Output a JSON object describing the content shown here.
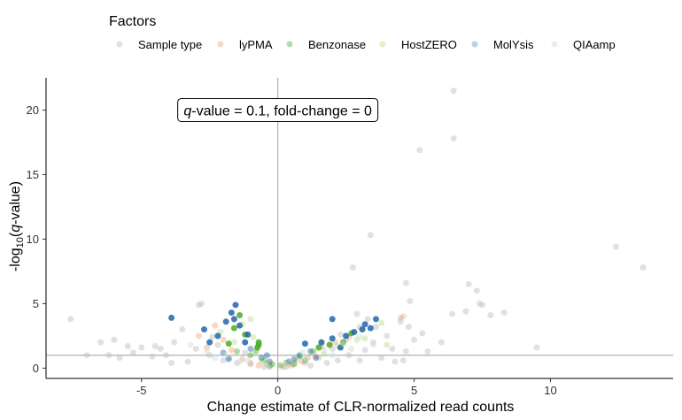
{
  "chart_data": {
    "type": "scatter",
    "legend": {
      "title": "Factors",
      "position": "top",
      "items": [
        {
          "name": "Sample type",
          "color": "#bdbdbd"
        },
        {
          "name": "lyPMA",
          "color": "#f4a582"
        },
        {
          "name": "Benzonase",
          "color": "#5aae61"
        },
        {
          "name": "HostZERO",
          "color": "#b8e186"
        },
        {
          "name": "MolYsis",
          "color": "#6a99c8"
        },
        {
          "name": "QIAamp",
          "color": "#c7e0d8"
        }
      ]
    },
    "xlabel": "Change estimate of CLR-normalized read counts",
    "ylabel_parts": {
      "pre": "-log",
      "sub": "10",
      "open": "(",
      "italic": "q",
      "post": "-value)"
    },
    "xlim": [
      -8.5,
      14.5
    ],
    "ylim": [
      -0.8,
      22.5
    ],
    "xticks": [
      -5,
      0,
      5,
      10
    ],
    "yticks": [
      0,
      5,
      10,
      15,
      20
    ],
    "grid": false,
    "reference_lines": {
      "vertical_x": 0,
      "horizontal_y": 1
    },
    "annotation": {
      "italic": "q",
      "text": "-value = 0.1, fold-change = 0",
      "x": 0,
      "y": 20
    },
    "series": [
      {
        "name": "Sample type",
        "color": "#bdbdbd",
        "points": [
          [
            6.45,
            21.5
          ],
          [
            6.45,
            17.8
          ],
          [
            5.2,
            16.9
          ],
          [
            12.4,
            9.4
          ],
          [
            13.4,
            7.8
          ],
          [
            3.4,
            10.3
          ],
          [
            2.75,
            7.8
          ],
          [
            4.7,
            6.6
          ],
          [
            7.0,
            6.5
          ],
          [
            7.3,
            6.0
          ],
          [
            4.85,
            5.2
          ],
          [
            6.9,
            4.4
          ],
          [
            7.5,
            4.9
          ],
          [
            6.4,
            4.2
          ],
          [
            7.8,
            4.1
          ],
          [
            8.3,
            4.3
          ],
          [
            7.4,
            5.0
          ],
          [
            6.0,
            2.0
          ],
          [
            9.5,
            1.6
          ],
          [
            -7.6,
            3.8
          ],
          [
            -6.5,
            2.0
          ],
          [
            -6.0,
            2.2
          ],
          [
            -5.5,
            1.7
          ],
          [
            -5.0,
            1.6
          ],
          [
            -4.5,
            1.7
          ],
          [
            -4.3,
            1.5
          ],
          [
            -3.5,
            3.0
          ],
          [
            -3.8,
            2.0
          ],
          [
            -4.1,
            1.0
          ],
          [
            -4.6,
            0.9
          ],
          [
            -5.3,
            1.2
          ],
          [
            -3.0,
            1.5
          ],
          [
            -2.8,
            5.0
          ],
          [
            -2.9,
            4.9
          ],
          [
            -2.5,
            1.0
          ],
          [
            -2.0,
            0.6
          ],
          [
            -1.5,
            0.4
          ],
          [
            -1.0,
            0.3
          ],
          [
            -0.5,
            0.1
          ],
          [
            0.5,
            0.2
          ],
          [
            1.0,
            0.4
          ],
          [
            1.5,
            0.8
          ],
          [
            2.0,
            1.5
          ],
          [
            2.5,
            2.2
          ],
          [
            3.0,
            3.2
          ],
          [
            3.3,
            3.8
          ],
          [
            2.9,
            4.2
          ],
          [
            3.6,
            3.2
          ],
          [
            4.0,
            2.5
          ],
          [
            4.2,
            1.5
          ],
          [
            4.5,
            3.6
          ],
          [
            4.6,
            4.0
          ],
          [
            4.7,
            1.3
          ],
          [
            4.8,
            3.2
          ],
          [
            4.6,
            0.6
          ],
          [
            5.0,
            2.2
          ],
          [
            5.3,
            2.7
          ],
          [
            5.5,
            1.3
          ],
          [
            3.8,
            0.8
          ],
          [
            4.3,
            0.5
          ],
          [
            2.2,
            0.6
          ],
          [
            1.8,
            0.4
          ],
          [
            2.6,
            1.0
          ],
          [
            3.2,
            1.4
          ],
          [
            -3.3,
            0.5
          ],
          [
            -2.2,
            1.8
          ],
          [
            -3.9,
            0.4
          ],
          [
            -1.8,
            0.8
          ],
          [
            -1.2,
            1.2
          ],
          [
            -2.4,
            2.4
          ],
          [
            1.2,
            0.2
          ],
          [
            0.3,
            0.1
          ],
          [
            -0.3,
            0.1
          ],
          [
            1.6,
            1.9
          ],
          [
            2.3,
            2.6
          ],
          [
            3.5,
            2.0
          ],
          [
            3.0,
            0.6
          ],
          [
            -6.2,
            1.0
          ],
          [
            -7.0,
            1.0
          ],
          [
            -5.8,
            0.8
          ]
        ]
      },
      {
        "name": "lyPMA",
        "color": "#f4a582",
        "points": [
          [
            4.5,
            3.9
          ],
          [
            -2.3,
            3.3
          ],
          [
            -2.9,
            2.5
          ],
          [
            -2.0,
            2.2
          ],
          [
            -1.7,
            1.4
          ],
          [
            -1.0,
            0.4
          ],
          [
            -0.4,
            0.3
          ],
          [
            0.2,
            0.1
          ],
          [
            0.6,
            0.4
          ],
          [
            1.1,
            0.8
          ],
          [
            1.6,
            1.6
          ],
          [
            2.1,
            2.0
          ],
          [
            2.6,
            2.4
          ],
          [
            -1.3,
            0.7
          ],
          [
            -0.7,
            0.2
          ],
          [
            0.9,
            0.5
          ],
          [
            1.4,
            0.9
          ],
          [
            3.1,
            3.0
          ],
          [
            -2.6,
            1.6
          ],
          [
            0.4,
            0.3
          ]
        ]
      },
      {
        "name": "Benzonase",
        "color": "#4dac26",
        "points": [
          [
            -0.7,
            2.0
          ],
          [
            -0.7,
            1.8
          ],
          [
            -0.75,
            1.6
          ],
          [
            -0.8,
            1.3
          ],
          [
            -1.4,
            4.1
          ],
          [
            -1.2,
            2.6
          ],
          [
            -1.6,
            3.1
          ],
          [
            -0.5,
            0.6
          ],
          [
            -0.2,
            0.3
          ],
          [
            0.3,
            0.4
          ],
          [
            0.8,
            0.9
          ],
          [
            1.3,
            1.3
          ],
          [
            1.9,
            1.8
          ],
          [
            2.4,
            2.0
          ],
          [
            -1.0,
            1.0
          ],
          [
            -1.8,
            1.9
          ],
          [
            0.6,
            0.3
          ],
          [
            1.5,
            1.6
          ],
          [
            2.7,
            2.7
          ],
          [
            -0.3,
            0.2
          ],
          [
            0.1,
            0.2
          ],
          [
            -1.5,
            1.3
          ],
          [
            1.0,
            0.6
          ]
        ]
      },
      {
        "name": "HostZERO",
        "color": "#b8e186",
        "points": [
          [
            -1.0,
            3.8
          ],
          [
            -1.3,
            3.4
          ],
          [
            -0.9,
            2.4
          ],
          [
            3.2,
            2.3
          ],
          [
            4.0,
            1.8
          ],
          [
            3.8,
            3.5
          ],
          [
            -2.1,
            2.8
          ],
          [
            1.7,
            1.1
          ],
          [
            2.2,
            1.7
          ],
          [
            0.7,
            0.6
          ],
          [
            -0.6,
            0.5
          ],
          [
            2.9,
            2.2
          ],
          [
            -1.6,
            2.0
          ]
        ]
      },
      {
        "name": "MolYsis",
        "color": "#2166ac",
        "points": [
          [
            -1.55,
            4.9
          ],
          [
            -1.7,
            4.3
          ],
          [
            -1.9,
            3.6
          ],
          [
            -1.6,
            3.8
          ],
          [
            -1.4,
            3.3
          ],
          [
            -2.2,
            2.5
          ],
          [
            -2.5,
            2.0
          ],
          [
            -1.2,
            2.0
          ],
          [
            -1.0,
            1.5
          ],
          [
            -0.6,
            0.8
          ],
          [
            -0.3,
            0.5
          ],
          [
            0.4,
            0.5
          ],
          [
            0.8,
            1.0
          ],
          [
            1.2,
            1.3
          ],
          [
            1.6,
            2.0
          ],
          [
            2.0,
            2.3
          ],
          [
            2.3,
            1.6
          ],
          [
            2.8,
            2.8
          ],
          [
            3.1,
            3.0
          ],
          [
            3.6,
            3.8
          ],
          [
            3.2,
            3.4
          ],
          [
            2.0,
            3.8
          ],
          [
            -3.9,
            3.9
          ],
          [
            -2.0,
            1.2
          ],
          [
            -1.8,
            0.7
          ],
          [
            1.0,
            1.9
          ],
          [
            2.5,
            2.5
          ],
          [
            3.4,
            3.1
          ],
          [
            -2.7,
            3.0
          ],
          [
            -1.1,
            2.6
          ],
          [
            -0.4,
            1.0
          ],
          [
            0.6,
            0.7
          ],
          [
            1.4,
            0.8
          ]
        ]
      },
      {
        "name": "QIAamp",
        "color": "#c7e0d8",
        "points": [
          [
            -3.2,
            1.8
          ],
          [
            -2.6,
            1.3
          ],
          [
            -1.9,
            1.0
          ],
          [
            -1.1,
            0.6
          ],
          [
            -0.4,
            0.2
          ],
          [
            0.3,
            0.3
          ],
          [
            1.0,
            0.7
          ],
          [
            1.7,
            1.4
          ],
          [
            2.4,
            1.9
          ],
          [
            3.0,
            2.4
          ],
          [
            3.5,
            1.8
          ],
          [
            2.0,
            1.0
          ],
          [
            -2.3,
            0.8
          ],
          [
            -1.4,
            0.5
          ],
          [
            0.9,
            1.2
          ],
          [
            2.7,
            1.5
          ]
        ]
      }
    ]
  }
}
